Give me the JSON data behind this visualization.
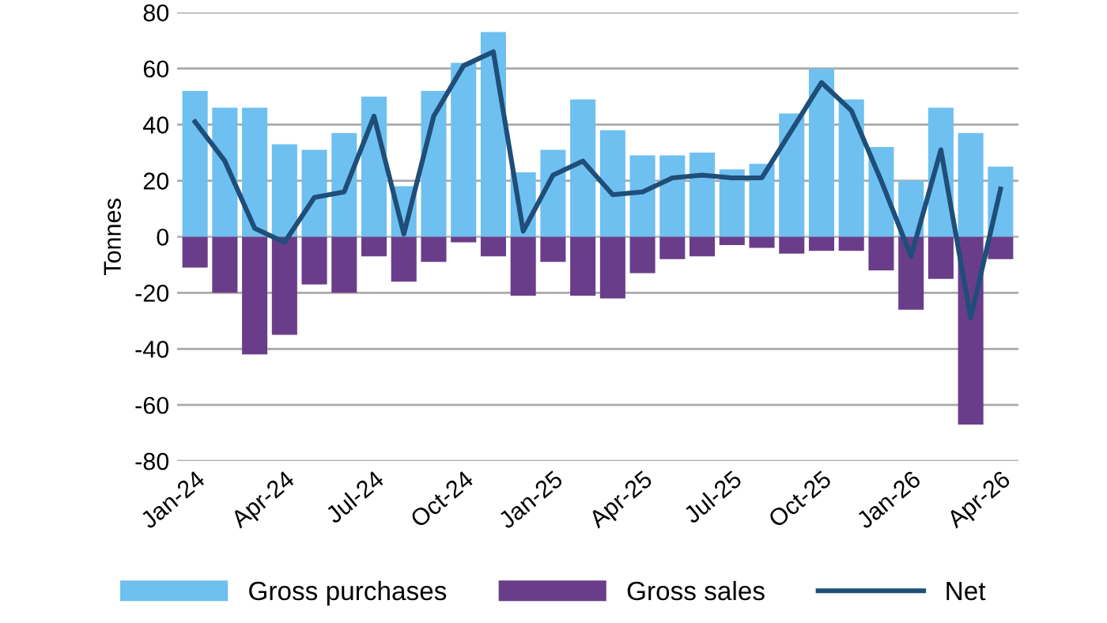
{
  "chart_data": {
    "type": "bar",
    "stacked": true,
    "ylabel": "Tonnes",
    "categories": [
      "Jan-24",
      null,
      null,
      "Apr-24",
      null,
      null,
      "Jul-24",
      null,
      null,
      "Oct-24",
      null,
      null,
      "Jan-25",
      null,
      null,
      "Apr-25",
      null,
      null,
      "Jul-25",
      null,
      null,
      "Oct-25",
      null,
      null,
      "Jan-26",
      null,
      null,
      "Apr-26"
    ],
    "series": [
      {
        "name": "Gross purchases",
        "color": "#6ec0f0",
        "values": [
          52,
          46,
          46,
          33,
          31,
          37,
          50,
          18,
          52,
          62,
          73,
          23,
          31,
          49,
          38,
          29,
          29,
          30,
          24,
          26,
          44,
          60,
          49,
          32,
          20,
          46,
          37,
          25
        ]
      },
      {
        "name": "Gross sales",
        "color": "#6a3d8a",
        "values": [
          -11,
          -20,
          -42,
          -35,
          -17,
          -20,
          -7,
          -16,
          -9,
          -2,
          -7,
          -21,
          -9,
          -21,
          -22,
          -13,
          -8,
          -7,
          -3,
          -4,
          -6,
          -5,
          -5,
          -12,
          -26,
          -15,
          -67,
          -8
        ]
      },
      {
        "name": "Net",
        "type": "line",
        "color": "#1f4e79",
        "values": [
          41,
          27,
          3,
          -2,
          14,
          16,
          43,
          1,
          43,
          61,
          66,
          2,
          22,
          27,
          15,
          16,
          21,
          22,
          21,
          21,
          38,
          55,
          45,
          20,
          -7,
          31,
          -29,
          17
        ]
      }
    ],
    "ylim": [
      -80,
      80
    ],
    "yticks": [
      -80,
      -60,
      -40,
      -20,
      0,
      20,
      40,
      60,
      80
    ],
    "grid": "y",
    "legend": "bottom"
  }
}
